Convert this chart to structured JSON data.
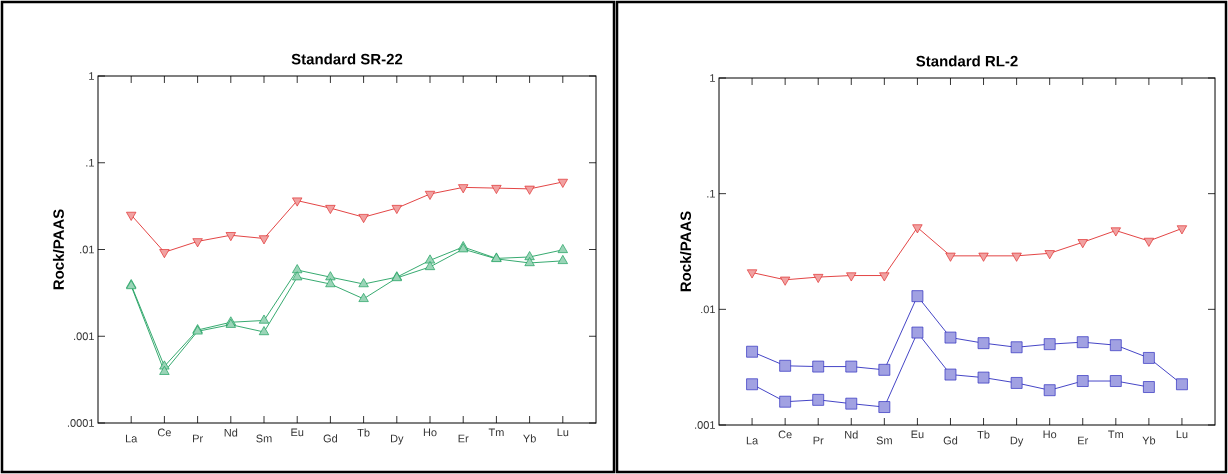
{
  "chart_data": [
    {
      "type": "line",
      "title": "Standard SR-22",
      "ylabel": "Rock/PAAS",
      "categories": [
        "La",
        "Ce",
        "Pr",
        "Nd",
        "Sm",
        "Eu",
        "Gd",
        "Tb",
        "Dy",
        "Ho",
        "Er",
        "Tm",
        "Yb",
        "Lu"
      ],
      "log": "y",
      "ylim": [
        0.0001,
        1
      ],
      "yticks": [
        {
          "value": 0.0001,
          "label": ".0001"
        },
        {
          "value": 0.001,
          "label": ".001"
        },
        {
          "value": 0.01,
          "label": ".01"
        },
        {
          "value": 0.1,
          "label": ".1"
        },
        1
      ],
      "series": [
        {
          "color": "#e03030",
          "marker": "triangle-down",
          "values": [
            0.025,
            0.0093,
            0.0124,
            0.0146,
            0.0134,
            0.0366,
            0.03,
            0.0236,
            0.03,
            0.0436,
            0.052,
            0.051,
            0.05,
            0.06
          ]
        },
        {
          "color": "#20a060",
          "marker": "triangle",
          "values": [
            0.0039,
            0.00045,
            0.00118,
            0.00145,
            0.00152,
            0.0058,
            0.0048,
            0.004,
            0.0048,
            0.0075,
            0.0107,
            0.0079,
            0.0082,
            0.0099
          ]
        },
        {
          "color": "#20a060",
          "marker": "triangle",
          "values": [
            0.0038,
            0.00039,
            0.00114,
            0.00136,
            0.00112,
            0.0048,
            0.004,
            0.0027,
            0.0047,
            0.0063,
            0.0101,
            0.0078,
            0.007,
            0.0074
          ]
        }
      ]
    },
    {
      "type": "line",
      "title": "Standard RL-2",
      "ylabel": "Rock/PAAS",
      "categories": [
        "La",
        "Ce",
        "Pr",
        "Nd",
        "Sm",
        "Eu",
        "Gd",
        "Tb",
        "Dy",
        "Ho",
        "Er",
        "Tm",
        "Yb",
        "Lu"
      ],
      "log": "y",
      "ylim": [
        0.001,
        1
      ],
      "yticks": [
        {
          "value": 0.001,
          "label": ".001"
        },
        {
          "value": 0.01,
          "label": ".01"
        },
        {
          "value": 0.1,
          "label": ".1"
        },
        1
      ],
      "series": [
        {
          "color": "#e03030",
          "marker": "triangle-down",
          "values": [
            0.0208,
            0.018,
            0.019,
            0.0196,
            0.0196,
            0.051,
            0.029,
            0.029,
            0.029,
            0.0305,
            0.038,
            0.048,
            0.039,
            0.05
          ]
        },
        {
          "color": "#3030c0",
          "marker": "square",
          "values": [
            0.0043,
            0.00325,
            0.0032,
            0.0032,
            0.003,
            0.013,
            0.0057,
            0.0051,
            0.0047,
            0.005,
            0.0052,
            0.0049,
            0.0038,
            0.00225
          ]
        },
        {
          "color": "#3030c0",
          "marker": "square",
          "values": [
            0.00225,
            0.00159,
            0.00165,
            0.00153,
            0.00143,
            0.0063,
            0.00273,
            0.00257,
            0.00231,
            0.002,
            0.0024,
            0.0024,
            0.00213,
            null
          ]
        }
      ]
    }
  ]
}
